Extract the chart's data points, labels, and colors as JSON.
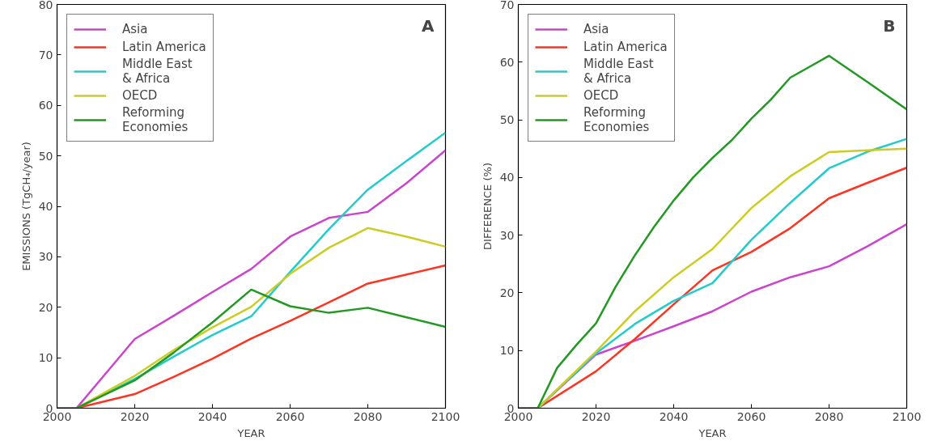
{
  "chart_data": [
    {
      "type": "line",
      "xlabel": "YEAR",
      "ylabel": "EMISSIONS (TgCH₄/year)",
      "annotations": [
        "A"
      ],
      "x": [
        2000,
        2005,
        2020,
        2030,
        2040,
        2050,
        2060,
        2070,
        2080,
        2090,
        2100
      ],
      "xlim": [
        2000,
        2100
      ],
      "xticks": [
        2000,
        2020,
        2040,
        2060,
        2080,
        2100
      ],
      "ylim": [
        0,
        80
      ],
      "yticks": [
        0,
        10,
        20,
        30,
        40,
        50,
        60,
        70,
        80
      ],
      "grid": false,
      "legend": "top left",
      "series": [
        {
          "name": "Asia",
          "color": "#cc44cc",
          "values": [
            0,
            0,
            13.7,
            18.3,
            23,
            27.6,
            34,
            37.7,
            38.9,
            44.6,
            51.1
          ]
        },
        {
          "name": "Latin America",
          "color": "#ff3322",
          "values": [
            0,
            0,
            2.8,
            6.2,
            9.8,
            13.8,
            17.3,
            21,
            24.7,
            26.5,
            28.3
          ]
        },
        {
          "name": "Middle East\n& Africa",
          "color": "#22cccc",
          "values": [
            0,
            0,
            5.8,
            10.2,
            14.5,
            18.2,
            27,
            35.5,
            43.3,
            49,
            54.6
          ]
        },
        {
          "name": "OECD",
          "color": "#cccc22",
          "values": [
            0,
            0,
            6.4,
            11.5,
            16,
            20.1,
            26.6,
            31.8,
            35.7,
            34,
            32
          ]
        },
        {
          "name": "Reforming\nEconomies",
          "color": "#229922",
          "values": [
            0,
            0,
            5.5,
            11,
            17,
            23.5,
            20.2,
            18.9,
            19.9,
            18,
            16.1
          ]
        }
      ]
    },
    {
      "type": "line",
      "xlabel": "YEAR",
      "ylabel": "DIFFERENCE (%)",
      "annotations": [
        "B"
      ],
      "x": [
        2000,
        2005,
        2020,
        2030,
        2040,
        2050,
        2060,
        2070,
        2080,
        2090,
        2100
      ],
      "xlim": [
        2000,
        2100
      ],
      "xticks": [
        2000,
        2020,
        2040,
        2060,
        2080,
        2100
      ],
      "ylim": [
        0,
        70
      ],
      "yticks": [
        0,
        10,
        20,
        30,
        40,
        50,
        60,
        70
      ],
      "grid": false,
      "legend": "top left",
      "series": [
        {
          "name": "Asia",
          "color": "#cc44cc",
          "values": [
            0,
            0,
            9.3,
            11.7,
            14.2,
            16.8,
            20.2,
            22.7,
            24.6,
            28.1,
            31.9
          ]
        },
        {
          "name": "Latin America",
          "color": "#ff3322",
          "values": [
            0,
            0,
            6.4,
            12,
            18,
            23.9,
            27.1,
            31.2,
            36.4,
            39.1,
            41.7
          ]
        },
        {
          "name": "Middle East\n& Africa",
          "color": "#22cccc",
          "values": [
            0,
            0,
            9.5,
            14.6,
            18.6,
            21.7,
            29.2,
            35.6,
            41.6,
            44.5,
            46.7
          ]
        },
        {
          "name": "OECD",
          "color": "#cccc22",
          "values": [
            0,
            0,
            9.8,
            16.8,
            22.7,
            27.6,
            34.7,
            40.2,
            44.4,
            44.7,
            45
          ]
        },
        {
          "name": "Reforming\nEconomies",
          "color": "#229922",
          "x": [
            2000,
            2005,
            2010,
            2015,
            2020,
            2025,
            2030,
            2035,
            2040,
            2045,
            2050,
            2055,
            2060,
            2065,
            2070,
            2080,
            2090,
            2100
          ],
          "values": [
            0,
            0,
            7,
            11,
            14.7,
            21,
            26.5,
            31.5,
            36,
            40,
            43.4,
            46.5,
            50.2,
            53.5,
            57.3,
            61.1,
            56.5,
            51.8
          ]
        }
      ]
    }
  ]
}
